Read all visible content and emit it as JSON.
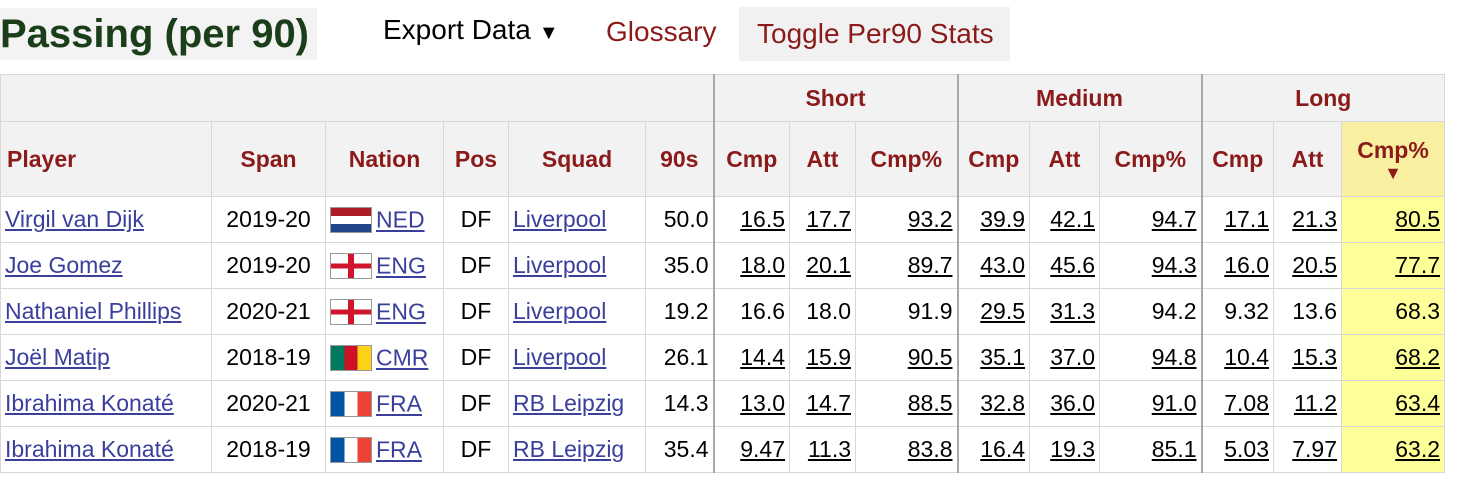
{
  "header": {
    "title": "Passing (per 90)",
    "export_label": "Export Data",
    "export_caret": "▼",
    "glossary_label": "Glossary",
    "toggle_label": "Toggle Per90 Stats"
  },
  "table": {
    "groups": {
      "short": "Short",
      "medium": "Medium",
      "long": "Long"
    },
    "columns": {
      "player": "Player",
      "span": "Span",
      "nation": "Nation",
      "pos": "Pos",
      "squad": "Squad",
      "nineties": "90s",
      "cmp": "Cmp",
      "att": "Att",
      "cmp_pct": "Cmp%"
    },
    "sort_indicator": "▼",
    "rows": [
      {
        "player": "Virgil van Dijk",
        "span": "2019-20",
        "flag": "ned",
        "nation": "NED",
        "pos": "DF",
        "squad": "Liverpool",
        "nineties": "50.0",
        "s_cmp": "16.5",
        "s_att": "17.7",
        "s_pct": "93.2",
        "m_cmp": "39.9",
        "m_att": "42.1",
        "m_pct": "94.7",
        "l_cmp": "17.1",
        "l_att": "21.3",
        "l_pct": "80.5"
      },
      {
        "player": "Joe Gomez",
        "span": "2019-20",
        "flag": "eng",
        "nation": "ENG",
        "pos": "DF",
        "squad": "Liverpool",
        "nineties": "35.0",
        "s_cmp": "18.0",
        "s_att": "20.1",
        "s_pct": "89.7",
        "m_cmp": "43.0",
        "m_att": "45.6",
        "m_pct": "94.3",
        "l_cmp": "16.0",
        "l_att": "20.5",
        "l_pct": "77.7"
      },
      {
        "player": "Nathaniel Phillips",
        "span": "2020-21",
        "flag": "eng",
        "nation": "ENG",
        "pos": "DF",
        "squad": "Liverpool",
        "nineties": "19.2",
        "s_cmp": "16.6",
        "s_att": "18.0",
        "s_pct": "91.9",
        "m_cmp": "29.5",
        "m_att": "31.3",
        "m_pct": "94.2",
        "l_cmp": "9.32",
        "l_att": "13.6",
        "l_pct": "68.3"
      },
      {
        "player": "Joël Matip",
        "span": "2018-19",
        "flag": "cmr",
        "nation": "CMR",
        "pos": "DF",
        "squad": "Liverpool",
        "nineties": "26.1",
        "s_cmp": "14.4",
        "s_att": "15.9",
        "s_pct": "90.5",
        "m_cmp": "35.1",
        "m_att": "37.0",
        "m_pct": "94.8",
        "l_cmp": "10.4",
        "l_att": "15.3",
        "l_pct": "68.2"
      },
      {
        "player": "Ibrahima Konaté",
        "span": "2020-21",
        "flag": "fra",
        "nation": "FRA",
        "pos": "DF",
        "squad": "RB Leipzig",
        "nineties": "14.3",
        "s_cmp": "13.0",
        "s_att": "14.7",
        "s_pct": "88.5",
        "m_cmp": "32.8",
        "m_att": "36.0",
        "m_pct": "91.0",
        "l_cmp": "7.08",
        "l_att": "11.2",
        "l_pct": "63.4"
      },
      {
        "player": "Ibrahima Konaté",
        "span": "2018-19",
        "flag": "fra",
        "nation": "FRA",
        "pos": "DF",
        "squad": "RB Leipzig",
        "nineties": "35.4",
        "s_cmp": "9.47",
        "s_att": "11.3",
        "s_pct": "83.8",
        "m_cmp": "16.4",
        "m_att": "19.3",
        "m_pct": "85.1",
        "l_cmp": "5.03",
        "l_att": "7.97",
        "l_pct": "63.2"
      }
    ]
  },
  "colors": {
    "title": "#1a3d1a",
    "header_text": "#8b1a1a",
    "link": "#3a3f9c",
    "sorted_bg": "#ffff99"
  }
}
